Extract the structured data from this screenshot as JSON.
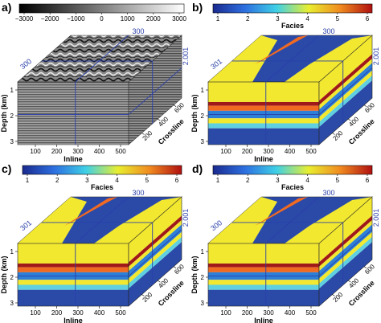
{
  "panels": [
    {
      "label": "a)",
      "type": "seismic",
      "colorbar": {
        "ticks": [
          "−3000",
          "−2000",
          "−1000",
          "0",
          "1000",
          "2000",
          "3000"
        ],
        "label": ""
      },
      "slices": {
        "top": "300",
        "left": "300",
        "right": "2.001"
      },
      "inline_ticks": [
        "100",
        "200",
        "300",
        "400",
        "500"
      ],
      "inline_label": "Inline",
      "depth_ticks": [
        "1",
        "2",
        "3"
      ],
      "depth_label": "Depth (km)",
      "crossline_ticks": [
        "200",
        "400",
        "600"
      ],
      "crossline_label": "Crossline"
    },
    {
      "label": "b)",
      "type": "facies",
      "colorbar": {
        "ticks": [
          "1",
          "2",
          "3",
          "4",
          "5",
          "6"
        ],
        "label": "Facies"
      },
      "slices": {
        "top": "300",
        "left": "301",
        "right": "2.001"
      },
      "inline_ticks": [
        "100",
        "200",
        "300",
        "400",
        "500"
      ],
      "inline_label": "Inline",
      "depth_ticks": [
        "1",
        "2",
        "3"
      ],
      "depth_label": "Depth (km)",
      "crossline_ticks": [
        "200",
        "400",
        "600"
      ],
      "crossline_label": "Crossline"
    },
    {
      "label": "c)",
      "type": "facies",
      "colorbar": {
        "ticks": [
          "1",
          "2",
          "3",
          "4",
          "5",
          "6"
        ],
        "label": "Facies"
      },
      "slices": {
        "top": "300",
        "left": "301",
        "right": "2.001"
      },
      "inline_ticks": [
        "100",
        "200",
        "300",
        "400",
        "500"
      ],
      "inline_label": "Inline",
      "depth_ticks": [
        "1",
        "2",
        "3"
      ],
      "depth_label": "Depth (km)",
      "crossline_ticks": [
        "200",
        "400",
        "600"
      ],
      "crossline_label": "Crossline"
    },
    {
      "label": "d)",
      "type": "facies",
      "colorbar": {
        "ticks": [
          "1",
          "2",
          "3",
          "4",
          "5",
          "6"
        ],
        "label": "Facies"
      },
      "slices": {
        "top": "300",
        "left": "300",
        "right": "2.001"
      },
      "inline_ticks": [
        "100",
        "200",
        "300",
        "400",
        "500"
      ],
      "inline_label": "Inline",
      "depth_ticks": [
        "1",
        "2",
        "3"
      ],
      "depth_label": "Depth (km)",
      "crossline_ticks": [
        "200",
        "400",
        "600"
      ],
      "crossline_label": "Crossline"
    }
  ],
  "colors": {
    "facies_1": "#2b4aa8",
    "facies_2": "#2d7fd8",
    "facies_3": "#5fd0e0",
    "facies_4": "#f2e830",
    "facies_5": "#f06a22",
    "facies_6": "#a01a1a",
    "slice_line": "#2a3fa8"
  }
}
